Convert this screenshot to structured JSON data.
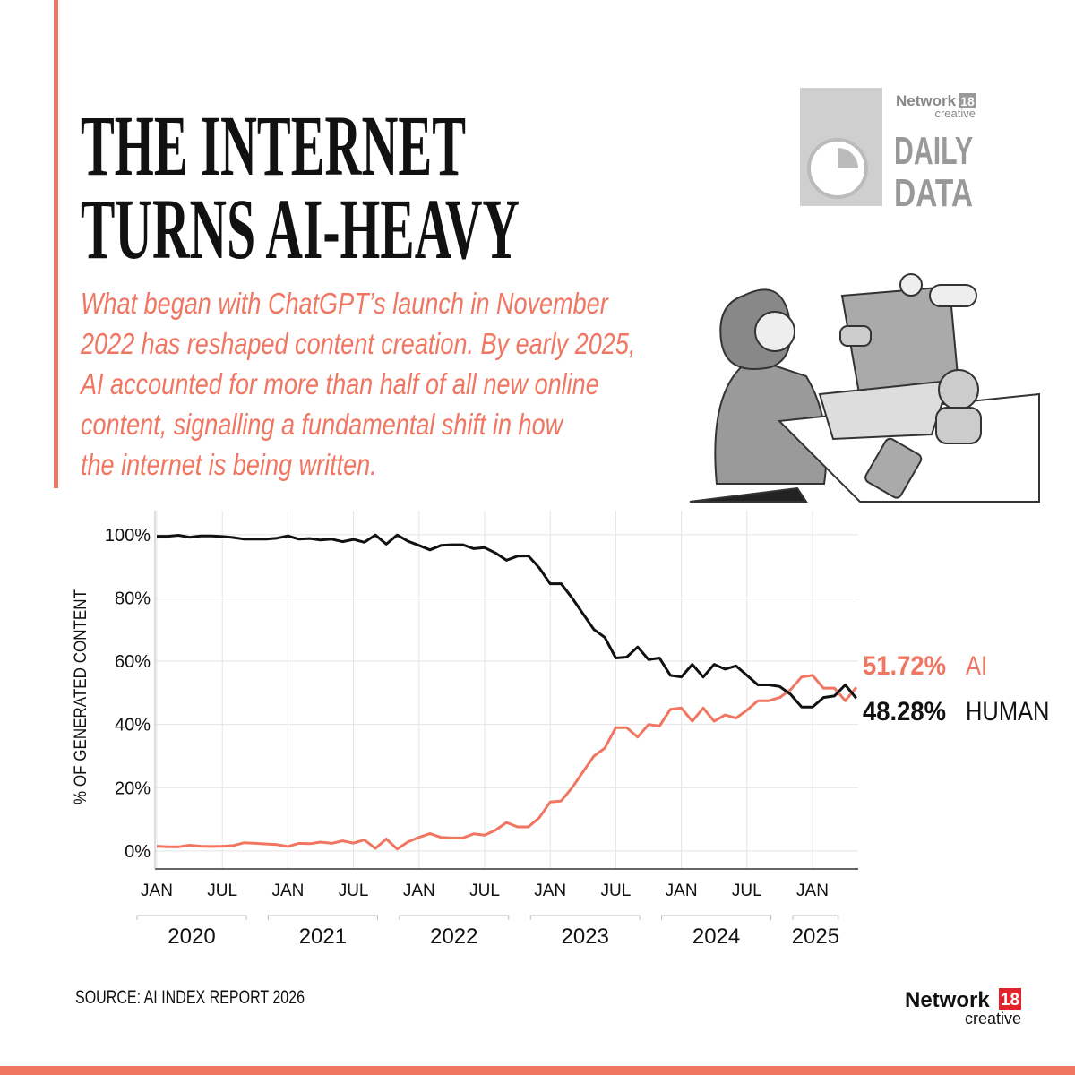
{
  "chart_data": {
    "type": "line",
    "title": [
      "THE INTERNET",
      "TURNS AI-HEAVY"
    ],
    "subtitle": [
      "What began with ChatGPT’s launch in November",
      "2022 has reshaped content creation. By early 2025,",
      "AI accounted for more than half of all new online",
      "content, signalling a fundamental shift in how",
      "the internet is being written."
    ],
    "y_label": "% OF GENERATED CONTENT",
    "source": "SOURCE: AI INDEX REPORT 2026",
    "branding": {
      "network": "Network",
      "number": "18",
      "creative": "creative",
      "daily": "DAILY",
      "data": "DATA"
    },
    "categories": [
      "JAN",
      null,
      null,
      null,
      null,
      null,
      "JUL",
      null,
      null,
      null,
      null,
      null,
      "JAN",
      null,
      null,
      null,
      null,
      null,
      "JUL",
      null,
      null,
      null,
      null,
      null,
      "JAN",
      null,
      null,
      null,
      null,
      null,
      "JUL",
      null,
      null,
      null,
      null,
      null,
      "JAN",
      null,
      null,
      null,
      null,
      null,
      "JUL",
      null,
      null,
      null,
      null,
      null,
      "JAN",
      null,
      null,
      null,
      null,
      null,
      "JUL",
      null,
      null,
      null,
      null,
      null,
      "JAN",
      null,
      null,
      null,
      null
    ],
    "years": [
      "2020",
      "2021",
      "2022",
      "2023",
      "2024",
      "2025"
    ],
    "ylim": [
      -5.7,
      107.6
    ],
    "yticks": [
      {
        "value": 0,
        "label": "0%"
      },
      {
        "value": 20,
        "label": "20%"
      },
      {
        "value": 40,
        "label": "40%"
      },
      {
        "value": 60,
        "label": "60%"
      },
      {
        "value": 80,
        "label": "80%"
      },
      {
        "value": 100,
        "label": "100%"
      }
    ],
    "grid": true,
    "series": [
      {
        "name": "AI",
        "color": "#f07662",
        "values": [
          1.5,
          1.3,
          1.3,
          1.8,
          1.5,
          1.4,
          1.5,
          1.7,
          2.6,
          2.4,
          2.2,
          2.0,
          1.4,
          2.4,
          2.3,
          2.8,
          2.4,
          3.2,
          2.5,
          3.5,
          0.8,
          3.8,
          0.6,
          2.9,
          4.3,
          5.5,
          4.3,
          4.1,
          4.1,
          5.4,
          5.0,
          6.6,
          9.0,
          7.6,
          7.6,
          10.5,
          15.5,
          15.8,
          20,
          25,
          30,
          32.5,
          39,
          39,
          36,
          40,
          39.5,
          44.8,
          45.2,
          41,
          45.2,
          41,
          43,
          42,
          44.5,
          47.5,
          47.5,
          48.5,
          51,
          55,
          55.5,
          51.5,
          51.5,
          47.5,
          51.72
        ],
        "value_labels": [
          null,
          null,
          null,
          null,
          null,
          null,
          null,
          null,
          null,
          null,
          null,
          null,
          null,
          null,
          null,
          null,
          null,
          null,
          null,
          null,
          null,
          null,
          null,
          null,
          null,
          null,
          null,
          null,
          null,
          null,
          null,
          null,
          null,
          null,
          null,
          null,
          null,
          null,
          null,
          null,
          null,
          null,
          null,
          null,
          null,
          null,
          null,
          null,
          null,
          null,
          null,
          null,
          null,
          null,
          null,
          null,
          null,
          null,
          null,
          null,
          null,
          null,
          null,
          null,
          "51.72%"
        ]
      },
      {
        "name": "HUMAN",
        "color": "#111111",
        "values": [
          99.5,
          99.5,
          99.8,
          99.2,
          99.6,
          99.6,
          99.4,
          99.1,
          98.6,
          98.6,
          98.6,
          98.9,
          99.6,
          98.6,
          98.8,
          98.3,
          98.6,
          97.8,
          98.5,
          97.6,
          99.9,
          97.0,
          99.9,
          97.9,
          96.6,
          95.2,
          96.6,
          96.8,
          96.8,
          95.6,
          95.9,
          94.2,
          91.9,
          93.2,
          93.3,
          89.5,
          84.5,
          84.5,
          80,
          75,
          70,
          67.5,
          61,
          61.3,
          64.5,
          60.5,
          61,
          55.5,
          55,
          59,
          55,
          59,
          57.5,
          58.5,
          55.5,
          52.5,
          52.5,
          52,
          49.5,
          45.5,
          45.5,
          48.5,
          49,
          52.5,
          48.28
        ],
        "value_labels": [
          null,
          null,
          null,
          null,
          null,
          null,
          null,
          null,
          null,
          null,
          null,
          null,
          null,
          null,
          null,
          null,
          null,
          null,
          null,
          null,
          null,
          null,
          null,
          null,
          null,
          null,
          null,
          null,
          null,
          null,
          null,
          null,
          null,
          null,
          null,
          null,
          null,
          null,
          null,
          null,
          null,
          null,
          null,
          null,
          null,
          null,
          null,
          null,
          null,
          null,
          null,
          null,
          null,
          null,
          null,
          null,
          null,
          null,
          null,
          null,
          null,
          null,
          null,
          null,
          "48.28%"
        ]
      }
    ]
  }
}
